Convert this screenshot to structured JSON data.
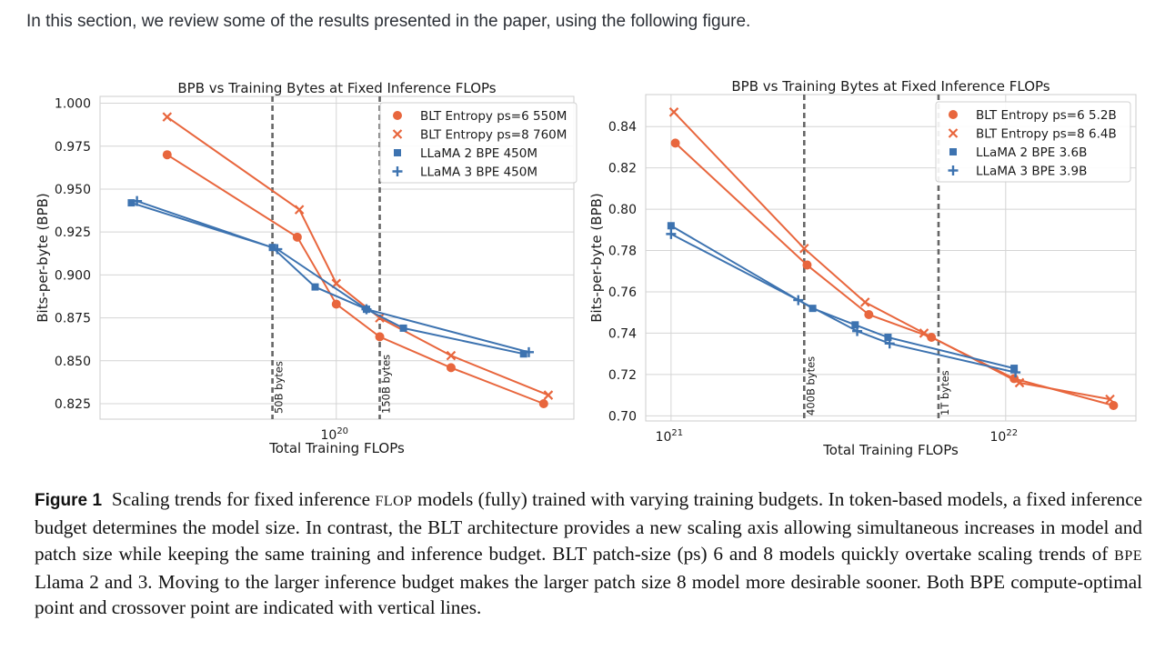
{
  "intro_text": "In this section, we review some of the results presented in the paper, using the following figure.",
  "colors": {
    "blt": "#e8663d",
    "bpe": "#3d73b0",
    "vline": "#666666"
  },
  "chart_data": [
    {
      "type": "line",
      "title": "BPB vs Training Bytes at Fixed Inference FLOPs",
      "xlabel": "Total Training FLOPs",
      "ylabel": "Bits-per-byte (BPB)",
      "xscale": "log",
      "x_tick_labels": [
        {
          "value": 1e+20,
          "base": "10",
          "exp": "20"
        }
      ],
      "ylim": [
        0.816,
        1.004
      ],
      "yticks": [
        "0.825",
        "0.850",
        "0.875",
        "0.900",
        "0.925",
        "0.950",
        "0.975",
        "1.000"
      ],
      "grid": true,
      "legend_position": "top-right",
      "vlines": [
        {
          "x": 6.8e+19,
          "label": "50B bytes"
        },
        {
          "x": 1.3e+20,
          "label": "150B bytes"
        }
      ],
      "series": [
        {
          "name": "BLT Entropy ps=6 550M",
          "color": "#e8663d",
          "marker": "circle",
          "x": [
            3.6e+19,
            7.9e+19,
            1e+20,
            1.3e+20,
            2e+20,
            3.5e+20
          ],
          "y": [
            0.97,
            0.922,
            0.883,
            0.864,
            0.846,
            0.825
          ]
        },
        {
          "name": "BLT Entropy ps=8 760M",
          "color": "#e8663d",
          "marker": "x",
          "x": [
            3.6e+19,
            8e+19,
            1e+20,
            1.3e+20,
            2e+20,
            3.6e+20
          ],
          "y": [
            0.992,
            0.938,
            0.895,
            0.875,
            0.853,
            0.83
          ]
        },
        {
          "name": "LLaMA 2 BPE 450M",
          "color": "#3d73b0",
          "marker": "square",
          "x": [
            2.9e+19,
            6.8e+19,
            8.8e+19,
            1.2e+20,
            1.5e+20,
            3.1e+20
          ],
          "y": [
            0.942,
            0.916,
            0.893,
            0.88,
            0.869,
            0.854
          ]
        },
        {
          "name": "LLaMA 3 BPE 450M",
          "color": "#3d73b0",
          "marker": "plus",
          "x": [
            3e+19,
            7e+19,
            1.2e+20,
            3.2e+20
          ],
          "y": [
            0.943,
            0.915,
            0.88,
            0.855
          ]
        }
      ]
    },
    {
      "type": "line",
      "title": "BPB vs Training Bytes at Fixed Inference FLOPs",
      "xlabel": "Total Training FLOPs",
      "ylabel": "Bits-per-byte (BPB)",
      "xscale": "log",
      "x_tick_labels": [
        {
          "value": 1e+21,
          "base": "10",
          "exp": "21"
        },
        {
          "value": 1e+22,
          "base": "10",
          "exp": "22"
        }
      ],
      "ylim": [
        0.6975,
        0.8555
      ],
      "yticks": [
        "0.70",
        "0.72",
        "0.74",
        "0.76",
        "0.78",
        "0.80",
        "0.82",
        "0.84"
      ],
      "grid": true,
      "legend_position": "top-right",
      "vlines": [
        {
          "x": 2.5e+21,
          "label": "400B bytes"
        },
        {
          "x": 6.3e+21,
          "label": "1T bytes"
        }
      ],
      "series": [
        {
          "name": "BLT Entropy ps=6 5.2B",
          "color": "#e8663d",
          "marker": "circle",
          "x": [
            1.03e+21,
            2.55e+21,
            3.9e+21,
            6e+21,
            1.06e+22,
            2.1e+22
          ],
          "y": [
            0.832,
            0.773,
            0.749,
            0.738,
            0.718,
            0.705
          ]
        },
        {
          "name": "BLT Entropy ps=8 6.4B",
          "color": "#e8663d",
          "marker": "x",
          "x": [
            1.02e+21,
            2.5e+21,
            3.8e+21,
            5.7e+21,
            1.1e+22,
            2.05e+22
          ],
          "y": [
            0.847,
            0.781,
            0.755,
            0.74,
            0.716,
            0.708
          ]
        },
        {
          "name": "LLaMA 2 BPE 3.6B",
          "color": "#3d73b0",
          "marker": "square",
          "x": [
            1e+21,
            2.65e+21,
            3.55e+21,
            4.45e+21,
            1.06e+22
          ],
          "y": [
            0.792,
            0.752,
            0.744,
            0.738,
            0.723
          ]
        },
        {
          "name": "LLaMA 3 BPE 3.9B",
          "color": "#3d73b0",
          "marker": "plus",
          "x": [
            1e+21,
            2.4e+21,
            3.6e+21,
            4.5e+21,
            1.07e+22
          ],
          "y": [
            0.788,
            0.756,
            0.741,
            0.735,
            0.721
          ]
        }
      ]
    }
  ],
  "caption": {
    "label": "Figure 1",
    "part1": "Scaling trends for fixed inference",
    "flop": "FLOP",
    "part2": "models (fully) trained with varying training budgets. In token-based models, a fixed inference budget determines the model size. In contrast, the BLT architecture provides a new scaling axis allowing simultaneous increases in model and patch size while keeping the same training and inference budget. BLT patch-size (ps) 6 and 8 models quickly overtake scaling trends of",
    "bpe": "BPE",
    "part3": "Llama 2 and 3. Moving to the larger inference budget makes the larger patch size 8 model more desirable sooner. Both BPE compute-optimal point and crossover point are indicated with vertical lines."
  }
}
